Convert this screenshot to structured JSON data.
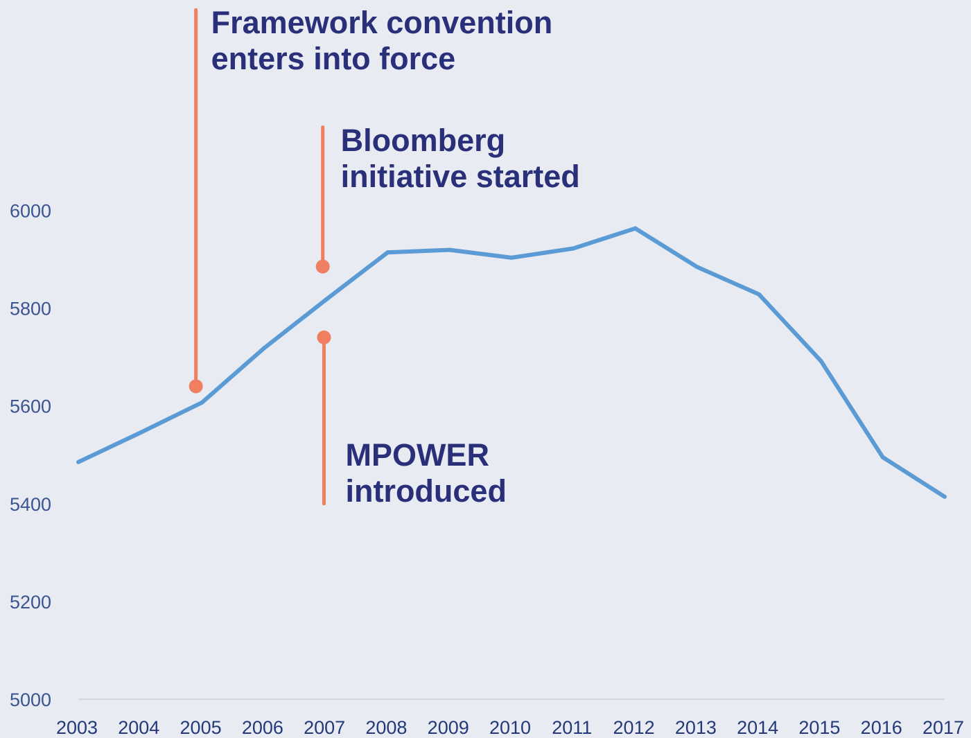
{
  "chart_data": {
    "type": "line",
    "title": "",
    "xlabel": "",
    "ylabel": "",
    "x": [
      "2003",
      "2004",
      "2005",
      "2006",
      "2007",
      "2008",
      "2009",
      "2010",
      "2011",
      "2012",
      "2013",
      "2014",
      "2015",
      "2016",
      "2017"
    ],
    "series": [
      {
        "values": [
          5485,
          5545,
          5607,
          5718,
          5817,
          5914,
          5919,
          5903,
          5922,
          5963,
          5884,
          5828,
          5692,
          5495,
          5414
        ]
      }
    ],
    "yticks": [
      5000,
      5200,
      5400,
      5600,
      5800,
      6000
    ],
    "ylim": [
      5000,
      6400
    ],
    "grid": false,
    "annotations": [
      {
        "id": "framework",
        "lines": [
          "Framework convention",
          "enters into force"
        ],
        "x": 2004.9,
        "y_dot": 5640,
        "y_line_end": 6410
      },
      {
        "id": "bloomberg",
        "lines": [
          "Bloomberg",
          "initiative started"
        ],
        "x": 2006.95,
        "y_dot": 5885,
        "y_line_end": 6170
      },
      {
        "id": "mpower",
        "lines": [
          "MPOWER",
          "introduced"
        ],
        "x": 2006.97,
        "y_dot": 5740,
        "y_line_end": 5400
      }
    ],
    "colors": {
      "background": "#e8ebf1",
      "series_line": "#5b9bd5",
      "annotation_marker": "#f07f62",
      "annotation_text": "#2a2f7a",
      "ytick_text": "#3a5591",
      "xtick_text": "#24397a",
      "axis_line": "#c9cfd9"
    }
  }
}
